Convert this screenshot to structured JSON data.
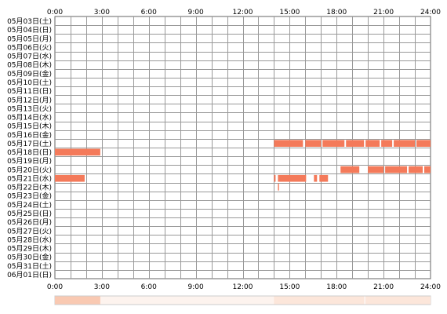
{
  "chart_data": {
    "type": "heatmap",
    "x_tick_labels": [
      "0:00",
      "3:00",
      "6:00",
      "9:00",
      "12:00",
      "15:00",
      "18:00",
      "21:00",
      "24:00"
    ],
    "xlim_hours": [
      0,
      24
    ],
    "grid": true,
    "rows": [
      "05月03日(土)",
      "05月04日(日)",
      "05月05日(月)",
      "05月06日(火)",
      "05月07日(水)",
      "05月08日(木)",
      "05月09日(金)",
      "05月10日(土)",
      "05月11日(日)",
      "05月12日(月)",
      "05月13日(火)",
      "05月14日(水)",
      "05月15日(木)",
      "05月16日(金)",
      "05月17日(土)",
      "05月18日(日)",
      "05月19日(月)",
      "05月20日(火)",
      "05月21日(水)",
      "05月22日(木)",
      "05月23日(金)",
      "05月24日(土)",
      "05月25日(日)",
      "05月26日(月)",
      "05月27日(火)",
      "05月28日(水)",
      "05月29日(木)",
      "05月30日(金)",
      "05月31日(土)",
      "06月01日(日)"
    ],
    "activity": [
      {
        "row": 14,
        "start": 14.0,
        "end": 15.85
      },
      {
        "row": 14,
        "start": 16.0,
        "end": 17.0
      },
      {
        "row": 14,
        "start": 17.1,
        "end": 18.5
      },
      {
        "row": 14,
        "start": 18.6,
        "end": 19.75
      },
      {
        "row": 14,
        "start": 19.85,
        "end": 20.75
      },
      {
        "row": 14,
        "start": 20.85,
        "end": 21.55
      },
      {
        "row": 14,
        "start": 21.65,
        "end": 23.0
      },
      {
        "row": 14,
        "start": 23.1,
        "end": 24.0
      },
      {
        "row": 15,
        "start": 0.0,
        "end": 2.9
      },
      {
        "row": 17,
        "start": 18.25,
        "end": 19.45
      },
      {
        "row": 17,
        "start": 20.0,
        "end": 21.0
      },
      {
        "row": 17,
        "start": 21.1,
        "end": 22.5
      },
      {
        "row": 17,
        "start": 22.6,
        "end": 23.5
      },
      {
        "row": 17,
        "start": 23.6,
        "end": 24.0
      },
      {
        "row": 18,
        "start": 0.0,
        "end": 1.9
      },
      {
        "row": 18,
        "start": 14.0,
        "end": 14.1
      },
      {
        "row": 18,
        "start": 14.25,
        "end": 16.05
      },
      {
        "row": 18,
        "start": 16.55,
        "end": 16.75
      },
      {
        "row": 18,
        "start": 16.9,
        "end": 17.45
      },
      {
        "row": 19,
        "start": 14.25,
        "end": 14.32
      }
    ],
    "colors": {
      "bar": "#f47a5a",
      "grid": "#999999",
      "frame": "#666666",
      "summary_background": "#fdf3ee",
      "summary_strong": "#f9c9b2",
      "summary_light": "#fce6da"
    }
  }
}
